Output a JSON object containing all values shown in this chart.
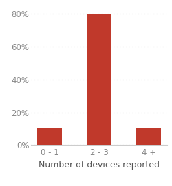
{
  "categories": [
    "0 - 1",
    "2 - 3",
    "4 +"
  ],
  "values": [
    10,
    80,
    10
  ],
  "bar_color": "#c0392b",
  "xlabel": "Number of devices reported",
  "ylim": [
    0,
    85
  ],
  "yticks": [
    0,
    20,
    40,
    60,
    80
  ],
  "ytick_labels": [
    "0%",
    "20%",
    "40%",
    "60%",
    "80%"
  ],
  "bar_width": 0.5,
  "grid_color": "#b0b0b0",
  "background_color": "#ffffff",
  "xlabel_fontsize": 9,
  "tick_fontsize": 8.5
}
